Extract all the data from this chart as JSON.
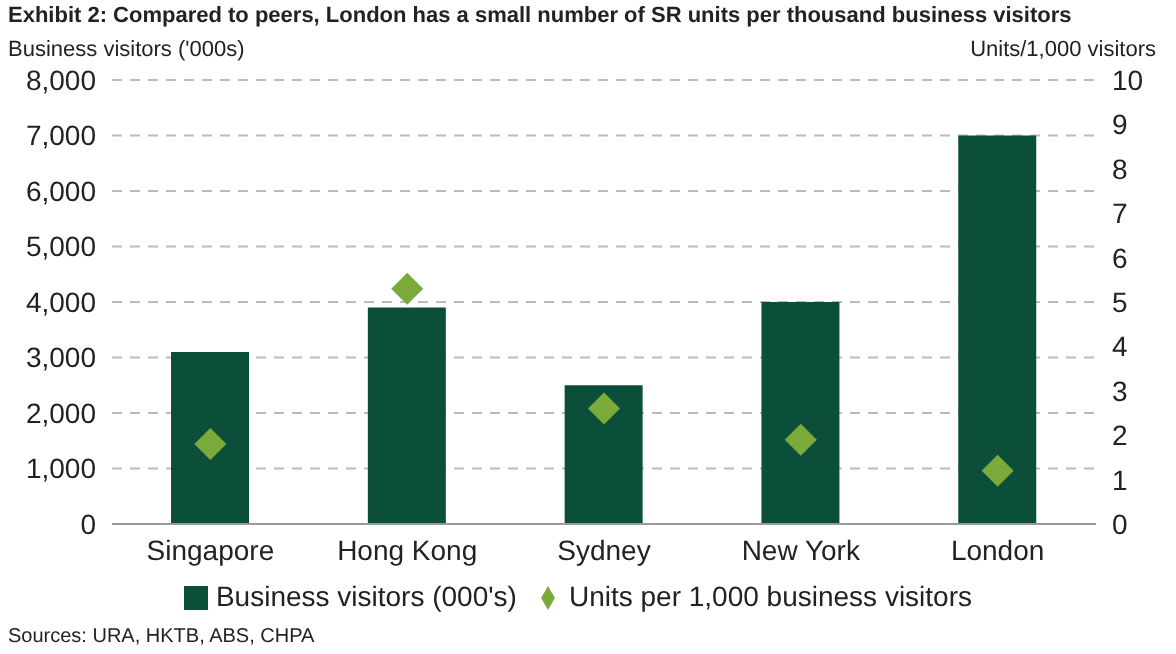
{
  "chart_data": {
    "type": "bar",
    "title": "Exhibit 2: Compared to peers, London has a small number of SR units per thousand business visitors",
    "ylabel": "Business visitors ('000s)",
    "y2label": "Units/1,000 visitors",
    "categories": [
      "Singapore",
      "Hong Kong",
      "Sydney",
      "New York",
      "London"
    ],
    "series": [
      {
        "name": "Business visitors (000's)",
        "color": "#0b4f3a",
        "values": [
          3100,
          3900,
          2500,
          4000,
          7000
        ]
      },
      {
        "name": "Units per 1,000 business visitors",
        "type": "scatter",
        "axis": "y2",
        "color": "#7aab3a",
        "values": [
          1.8,
          5.3,
          2.6,
          1.9,
          1.2
        ]
      }
    ],
    "ylim": [
      0,
      8000
    ],
    "yticks": [
      {
        "value": 0,
        "label": "0"
      },
      {
        "value": 1000,
        "label": "1,000"
      },
      {
        "value": 2000,
        "label": "2,000"
      },
      {
        "value": 3000,
        "label": "3,000"
      },
      {
        "value": 4000,
        "label": "4,000"
      },
      {
        "value": 5000,
        "label": "5,000"
      },
      {
        "value": 6000,
        "label": "6,000"
      },
      {
        "value": 7000,
        "label": "7,000"
      },
      {
        "value": 8000,
        "label": "8,000"
      }
    ],
    "y2lim": [
      0,
      10
    ],
    "y2ticks": [
      0,
      1,
      2,
      3,
      4,
      5,
      6,
      7,
      8,
      9,
      10
    ],
    "grid": "y",
    "legend": "bottom",
    "marker": "diamond",
    "annotations": [
      "Sources: URA, HKTB, ABS, CHPA"
    ]
  }
}
